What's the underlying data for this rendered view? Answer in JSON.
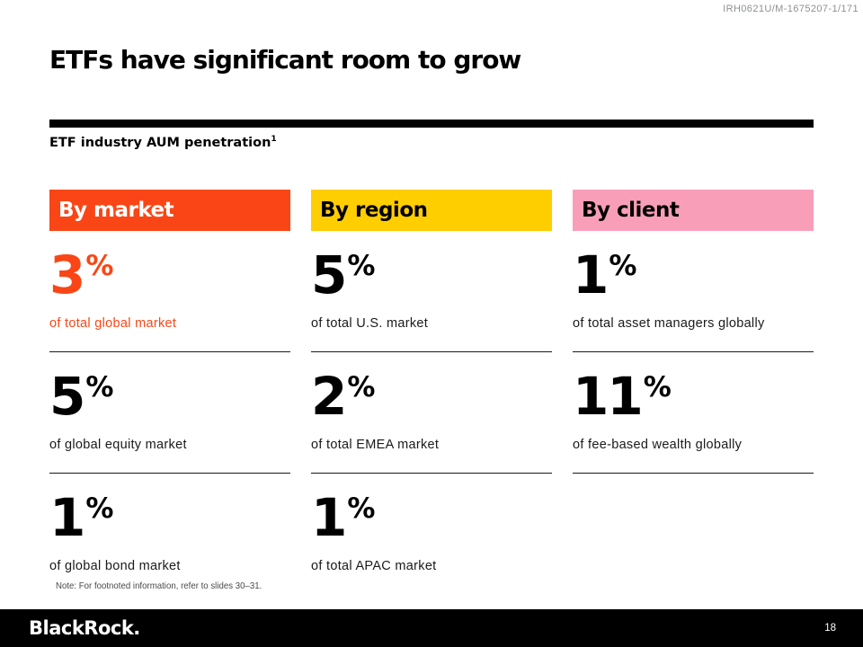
{
  "meta": {
    "doc_ref": "IRH0621U/M-1675207-1/171"
  },
  "header": {
    "title": "ETFs have significant room to grow",
    "subtitle": "ETF industry AUM penetration",
    "subtitle_superscript": "1"
  },
  "columns": [
    {
      "label": "By market",
      "header_bg": "#FA4616",
      "header_text_color": "#FFFFFF",
      "stats": [
        {
          "value": "3",
          "unit": "%",
          "label": "of total global market",
          "value_color": "#FA4616",
          "label_color": "#FA4616"
        },
        {
          "value": "5",
          "unit": "%",
          "label": "of global equity market",
          "value_color": "#000000",
          "label_color": "#1a1a1a"
        },
        {
          "value": "1",
          "unit": "%",
          "label": "of global bond market",
          "value_color": "#000000",
          "label_color": "#1a1a1a"
        }
      ]
    },
    {
      "label": "By region",
      "header_bg": "#FFCE00",
      "header_text_color": "#000000",
      "stats": [
        {
          "value": "5",
          "unit": "%",
          "label": "of total U.S. market",
          "value_color": "#000000",
          "label_color": "#1a1a1a"
        },
        {
          "value": "2",
          "unit": "%",
          "label": "of total EMEA market",
          "value_color": "#000000",
          "label_color": "#1a1a1a"
        },
        {
          "value": "1",
          "unit": "%",
          "label": "of total APAC market",
          "value_color": "#000000",
          "label_color": "#1a1a1a"
        }
      ]
    },
    {
      "label": "By client",
      "header_bg": "#F99EB9",
      "header_text_color": "#000000",
      "stats": [
        {
          "value": "1",
          "unit": "%",
          "label": "of total asset managers globally",
          "value_color": "#000000",
          "label_color": "#1a1a1a"
        },
        {
          "value": "11",
          "unit": "%",
          "label": "of fee-based wealth globally",
          "value_color": "#000000",
          "label_color": "#1a1a1a"
        }
      ]
    }
  ],
  "note": "Note: For footnoted information, refer to slides 30–31.",
  "footer": {
    "logo": "BlackRock.",
    "page_number": "18"
  }
}
